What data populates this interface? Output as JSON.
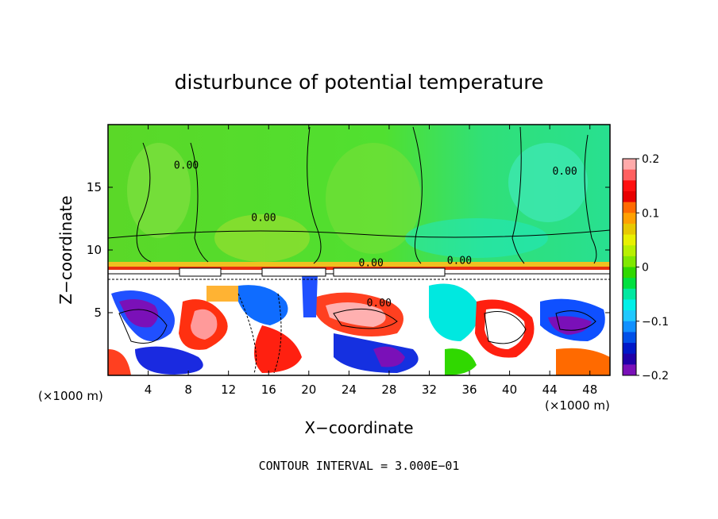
{
  "chart_data": {
    "type": "heatmap",
    "title": "disturbunce of potential temperature",
    "xlabel": "X−coordinate",
    "ylabel": "Z−coordinate",
    "x_unit_left": "(×1000 m)",
    "x_unit_right": "(×1000 m)",
    "xlim": [
      0,
      50
    ],
    "ylim": [
      0,
      20
    ],
    "x_ticks": [
      4,
      8,
      12,
      16,
      20,
      24,
      28,
      32,
      36,
      40,
      44,
      48
    ],
    "x_tick_labels": [
      "4",
      "8",
      "12",
      "16",
      "20",
      "24",
      "28",
      "32",
      "36",
      "40",
      "44",
      "48"
    ],
    "y_ticks": [
      5,
      10,
      15
    ],
    "y_tick_labels": [
      "5",
      "10",
      "15"
    ],
    "colorbar": {
      "range": [
        -0.2,
        0.2
      ],
      "ticks": [
        0.2,
        0.1,
        0,
        -0.1,
        -0.2
      ],
      "tick_labels": [
        "0.2",
        "0.1",
        "0",
        "−0.1",
        "−0.2"
      ],
      "colors": [
        "#ffaaaa",
        "#ff6060",
        "#ff1010",
        "#e80000",
        "#ff6a00",
        "#ffa000",
        "#e8c800",
        "#e8f000",
        "#b8f000",
        "#80e800",
        "#30d800",
        "#00e040",
        "#00e8a0",
        "#00f0e8",
        "#20c8ff",
        "#1090ff",
        "#0050e8",
        "#0018c8",
        "#2000a8",
        "#7a10b8"
      ]
    },
    "contour_labels": [
      {
        "text": "0.00",
        "x": 15.5,
        "z": 12.3
      },
      {
        "text": "0.00",
        "x": 7.8,
        "z": 16.5
      },
      {
        "text": "0.00",
        "x": 45.5,
        "z": 16.0
      },
      {
        "text": "0.00",
        "x": 26.2,
        "z": 8.7
      },
      {
        "text": "0.00",
        "x": 35.0,
        "z": 8.9
      },
      {
        "text": "0.00",
        "x": 27.0,
        "z": 5.5
      }
    ],
    "annotation": "CONTOUR INTERVAL = 3.000E−01"
  }
}
